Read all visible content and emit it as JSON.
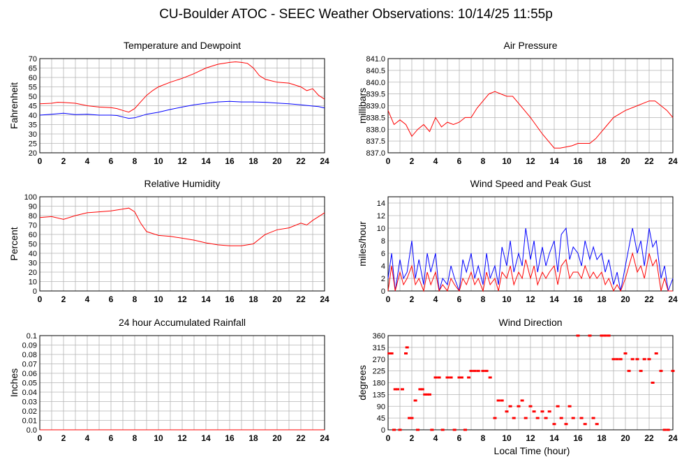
{
  "title": "CU-Boulder ATOC - SEEC Weather Observations: 10/14/25 11:55p",
  "xlabel": "Local Time (hour)",
  "x_ticks": [
    "0",
    "2",
    "4",
    "6",
    "8",
    "10",
    "12",
    "14",
    "16",
    "18",
    "20",
    "22",
    "24"
  ],
  "colors": {
    "red": "#ff0000",
    "blue": "#0000ff",
    "grid": "#b4b4b4"
  },
  "chart_data": [
    {
      "id": "temp",
      "type": "line",
      "title": "Temperature and Dewpoint",
      "ylabel": "Fahrenheit",
      "xlim": [
        0,
        24
      ],
      "ylim": [
        20,
        70
      ],
      "y_ticks": [
        "20",
        "25",
        "30",
        "35",
        "40",
        "45",
        "50",
        "55",
        "60",
        "65",
        "70"
      ],
      "series": [
        {
          "color": "#ff0000",
          "x": [
            0,
            1,
            1.5,
            2,
            3,
            4,
            5,
            6,
            6.5,
            7,
            7.5,
            8,
            8.5,
            9,
            9.5,
            10,
            11,
            12,
            13,
            14,
            15,
            16,
            16.5,
            17,
            17.5,
            18,
            18.5,
            19,
            20,
            21,
            22,
            22.5,
            23,
            23.5,
            24
          ],
          "y": [
            46,
            46.3,
            46.8,
            46.7,
            46.3,
            45,
            44.3,
            44,
            43.5,
            42.5,
            41.6,
            43.5,
            47,
            50.5,
            53,
            55,
            57.5,
            59.5,
            62,
            65,
            67,
            68,
            68.3,
            68,
            67.5,
            65,
            61,
            59,
            57.5,
            57,
            55,
            53,
            54,
            50.5,
            48.5
          ]
        },
        {
          "color": "#0000ff",
          "x": [
            0,
            1,
            2,
            3,
            4,
            5,
            6,
            6.5,
            7,
            7.5,
            8,
            8.5,
            9,
            10,
            11,
            12,
            13,
            14,
            15,
            16,
            17,
            18,
            19,
            20,
            21,
            22,
            23,
            23.5,
            24
          ],
          "y": [
            40,
            40.5,
            41,
            40.3,
            40.5,
            40,
            40,
            39.8,
            39,
            38.3,
            38.6,
            39.5,
            40.5,
            41.5,
            43,
            44.3,
            45.5,
            46.3,
            47,
            47.3,
            47,
            47,
            46.8,
            46.4,
            46,
            45.5,
            44.8,
            44.5,
            43.8
          ]
        }
      ]
    },
    {
      "id": "pressure",
      "type": "line",
      "title": "Air Pressure",
      "ylabel": "millibars",
      "xlim": [
        0,
        24
      ],
      "ylim": [
        837.0,
        841.0
      ],
      "y_ticks": [
        "837.0",
        "837.5",
        "838.0",
        "838.5",
        "839.0",
        "839.5",
        "840.0",
        "840.5",
        "841.0"
      ],
      "series": [
        {
          "color": "#ff0000",
          "x": [
            0,
            0.5,
            1,
            1.5,
            2,
            2.5,
            3,
            3.5,
            4,
            4.5,
            5,
            5.5,
            6,
            6.5,
            7,
            7.5,
            8,
            8.5,
            9,
            9.5,
            10,
            10.5,
            11,
            12,
            13,
            13.5,
            14,
            14.5,
            15,
            15.5,
            16,
            17,
            17.5,
            18,
            18.5,
            19,
            20,
            21,
            22,
            22.5,
            23,
            23.5,
            24
          ],
          "y": [
            838.8,
            838.2,
            838.4,
            838.2,
            837.7,
            838.0,
            838.2,
            837.9,
            838.5,
            838.1,
            838.3,
            838.2,
            838.3,
            838.5,
            838.5,
            838.9,
            839.2,
            839.5,
            839.6,
            839.5,
            839.4,
            839.4,
            839.1,
            838.5,
            837.8,
            837.5,
            837.2,
            837.2,
            837.25,
            837.3,
            837.4,
            837.4,
            837.6,
            837.9,
            838.2,
            838.5,
            838.8,
            839.0,
            839.2,
            839.2,
            839.0,
            838.8,
            838.5
          ]
        }
      ]
    },
    {
      "id": "rh",
      "type": "line",
      "title": "Relative Humidity",
      "ylabel": "Percent",
      "xlim": [
        0,
        24
      ],
      "ylim": [
        0,
        100
      ],
      "y_ticks": [
        "0",
        "10",
        "20",
        "30",
        "40",
        "50",
        "60",
        "70",
        "80",
        "90",
        "100"
      ],
      "series": [
        {
          "color": "#ff0000",
          "x": [
            0,
            1,
            2,
            3,
            4,
            5,
            6,
            7,
            7.5,
            8,
            8.5,
            9,
            10,
            11,
            12,
            13,
            14,
            15,
            16,
            17,
            18,
            19,
            20,
            21,
            22,
            22.5,
            23,
            23.5,
            24
          ],
          "y": [
            78,
            79,
            76,
            80,
            83,
            84,
            85,
            87,
            88,
            84,
            72,
            63,
            59,
            58,
            56,
            54,
            51,
            49,
            48,
            48,
            50,
            60,
            65,
            67,
            72,
            70,
            75,
            79,
            83
          ]
        }
      ]
    },
    {
      "id": "wind",
      "type": "line",
      "title": "Wind Speed and Peak Gust",
      "ylabel": "miles/hour",
      "xlim": [
        0,
        24
      ],
      "ylim": [
        0,
        15
      ],
      "y_ticks": [
        "0",
        "2",
        "4",
        "6",
        "8",
        "10",
        "12",
        "14"
      ],
      "series": [
        {
          "color": "#0000ff",
          "x": [
            0,
            0.3,
            0.6,
            1,
            1.3,
            1.6,
            2,
            2.3,
            2.6,
            3,
            3.3,
            3.6,
            4,
            4.3,
            4.6,
            5,
            5.3,
            5.6,
            6,
            6.3,
            6.6,
            7,
            7.3,
            7.6,
            8,
            8.3,
            8.6,
            9,
            9.3,
            9.6,
            10,
            10.3,
            10.6,
            11,
            11.3,
            11.6,
            12,
            12.3,
            12.6,
            13,
            13.3,
            13.6,
            14,
            14.3,
            14.6,
            15,
            15.3,
            15.6,
            16,
            16.3,
            16.6,
            17,
            17.3,
            17.6,
            18,
            18.3,
            18.6,
            19,
            19.3,
            19.6,
            20,
            20.3,
            20.6,
            21,
            21.3,
            21.6,
            22,
            22.3,
            22.6,
            23,
            23.3,
            23.6,
            24
          ],
          "y": [
            2,
            6,
            0,
            5,
            2,
            3,
            8,
            2,
            5,
            1,
            6,
            3,
            6,
            0,
            2,
            1,
            4,
            2,
            0,
            5,
            3,
            6,
            2,
            4,
            1,
            6,
            2,
            4,
            1,
            7,
            4,
            8,
            3,
            6,
            4,
            10,
            5,
            8,
            3,
            7,
            4,
            6,
            8,
            3,
            9,
            10,
            5,
            7,
            6,
            4,
            8,
            5,
            7,
            5,
            6,
            3,
            5,
            1,
            3,
            0,
            4,
            7,
            10,
            6,
            8,
            4,
            10,
            7,
            8,
            2,
            4,
            0,
            2
          ]
        },
        {
          "color": "#ff0000",
          "x": [
            0,
            0.3,
            0.6,
            1,
            1.3,
            1.6,
            2,
            2.3,
            2.6,
            3,
            3.3,
            3.6,
            4,
            4.3,
            4.6,
            5,
            5.3,
            5.6,
            6,
            6.3,
            6.6,
            7,
            7.3,
            7.6,
            8,
            8.3,
            8.6,
            9,
            9.3,
            9.6,
            10,
            10.3,
            10.6,
            11,
            11.3,
            11.6,
            12,
            12.3,
            12.6,
            13,
            13.3,
            13.6,
            14,
            14.3,
            14.6,
            15,
            15.3,
            15.6,
            16,
            16.3,
            16.6,
            17,
            17.3,
            17.6,
            18,
            18.3,
            18.6,
            19,
            19.3,
            19.6,
            20,
            20.3,
            20.6,
            21,
            21.3,
            21.6,
            22,
            22.3,
            22.6,
            23,
            23.3,
            23.6,
            24
          ],
          "y": [
            0,
            4,
            0,
            3,
            1,
            2,
            4,
            1,
            2,
            0,
            3,
            1,
            3,
            0,
            1,
            0,
            2,
            1,
            0,
            2,
            1,
            3,
            1,
            2,
            0,
            3,
            1,
            2,
            0,
            3,
            2,
            4,
            1,
            3,
            2,
            5,
            2,
            4,
            1,
            3,
            2,
            3,
            4,
            1,
            4,
            5,
            2,
            3,
            3,
            2,
            4,
            2,
            3,
            2,
            3,
            1,
            2,
            0,
            1,
            0,
            2,
            4,
            6,
            3,
            4,
            2,
            6,
            4,
            5,
            0,
            2,
            0,
            0
          ]
        }
      ]
    },
    {
      "id": "rain",
      "type": "line",
      "title": "24 hour Accumulated Rainfall",
      "ylabel": "Inches",
      "xlim": [
        0,
        24
      ],
      "ylim": [
        0,
        0.1
      ],
      "y_ticks": [
        "0.0",
        "0.01",
        "0.02",
        "0.03",
        "0.04",
        "0.05",
        "0.06",
        "0.07",
        "0.08",
        "0.09",
        "0.1"
      ],
      "series": [
        {
          "color": "#ff0000",
          "x": [
            0,
            24
          ],
          "y": [
            0,
            0
          ]
        }
      ]
    },
    {
      "id": "dir",
      "type": "scatter",
      "title": "Wind Direction",
      "ylabel": "degrees",
      "xlim": [
        0,
        24
      ],
      "ylim": [
        0,
        360
      ],
      "y_ticks": [
        "0",
        "45",
        "90",
        "135",
        "180",
        "225",
        "270",
        "315",
        "360"
      ],
      "series": [
        {
          "color": "#ff0000",
          "x": [
            0.1,
            0.3,
            0.5,
            0.6,
            0.8,
            1.0,
            1.2,
            1.5,
            1.6,
            1.8,
            2.0,
            2.3,
            2.5,
            2.7,
            2.9,
            3.1,
            3.3,
            3.5,
            3.7,
            4.0,
            4.3,
            4.6,
            5.0,
            5.3,
            5.6,
            6.0,
            6.2,
            6.5,
            6.8,
            7.0,
            7.3,
            7.6,
            8.0,
            8.3,
            8.6,
            9.0,
            9.3,
            9.6,
            10.0,
            10.3,
            10.6,
            11.0,
            11.3,
            11.6,
            12.0,
            12.3,
            12.6,
            13.0,
            13.3,
            13.6,
            14.0,
            14.3,
            14.6,
            15.0,
            15.3,
            15.6,
            16.0,
            16.3,
            16.6,
            17.0,
            17.3,
            17.6,
            18.0,
            18.3,
            18.6,
            19.0,
            19.3,
            19.6,
            20.0,
            20.3,
            20.6,
            21.0,
            21.3,
            21.6,
            22.0,
            22.3,
            22.6,
            23.0,
            23.3,
            23.6,
            24.0
          ],
          "y": [
            292,
            292,
            0,
            155,
            155,
            0,
            155,
            292,
            315,
            45,
            45,
            112,
            0,
            155,
            155,
            135,
            135,
            135,
            0,
            200,
            200,
            0,
            200,
            200,
            0,
            200,
            200,
            0,
            200,
            225,
            225,
            225,
            225,
            225,
            200,
            45,
            112,
            112,
            70,
            90,
            45,
            90,
            112,
            45,
            90,
            70,
            45,
            70,
            45,
            70,
            22,
            90,
            45,
            22,
            90,
            45,
            360,
            45,
            22,
            360,
            45,
            22,
            360,
            360,
            360,
            270,
            270,
            270,
            292,
            225,
            270,
            270,
            225,
            270,
            270,
            180,
            292,
            225,
            0,
            0,
            225
          ]
        }
      ]
    }
  ]
}
